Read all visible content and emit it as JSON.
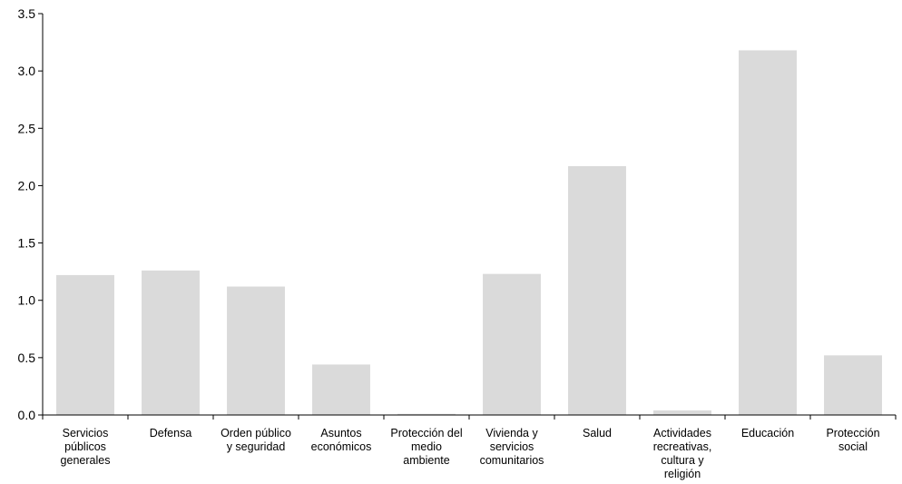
{
  "chart_data": {
    "type": "bar",
    "categories": [
      [
        "Servicios",
        "públicos",
        "generales"
      ],
      [
        "Defensa"
      ],
      [
        "Orden público",
        "y seguridad"
      ],
      [
        "Asuntos",
        "económicos"
      ],
      [
        "Protección del",
        "medio",
        "ambiente"
      ],
      [
        "Vivienda y",
        "servicios",
        "comunitarios"
      ],
      [
        "Salud"
      ],
      [
        "Actividades",
        "recreativas,",
        "cultura y",
        "religión"
      ],
      [
        "Educación"
      ],
      [
        "Protección",
        "social"
      ]
    ],
    "values": [
      1.22,
      1.26,
      1.12,
      0.44,
      0.01,
      1.23,
      2.17,
      0.04,
      3.18,
      0.52
    ],
    "ylim": [
      0,
      3.5
    ],
    "yticks": [
      "0.0",
      "0.5",
      "1.0",
      "1.5",
      "2.0",
      "2.5",
      "3.0",
      "3.5"
    ],
    "title": "",
    "xlabel": "",
    "ylabel": "",
    "grid": false,
    "bar_color": "#dadada",
    "axis_color": "#000000"
  }
}
